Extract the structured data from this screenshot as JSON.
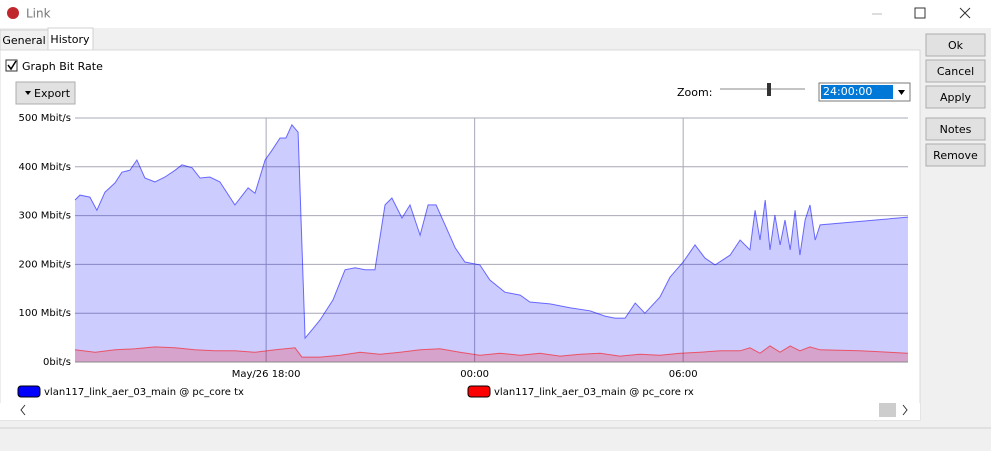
{
  "window": {
    "title": "Link"
  },
  "tabs": [
    "General",
    "History"
  ],
  "graph_bit_rate": {
    "label": "Graph Bit Rate",
    "checked": true
  },
  "export_button": "Export",
  "zoom": {
    "label": "Zoom:",
    "value": "24:00:00"
  },
  "buttons": [
    "Ok",
    "Cancel",
    "Apply",
    "Notes",
    "Remove"
  ],
  "chart_data": {
    "type": "area",
    "xlim": [
      12.5,
      36.47
    ],
    "xticks": [
      {
        "value": 18,
        "label": "May/26 18:00"
      },
      {
        "value": 24,
        "label": "00:00"
      },
      {
        "value": 30,
        "label": "06:00"
      }
    ],
    "ylim": [
      0,
      500
    ],
    "yticks": [
      {
        "value": 0,
        "label": "0bit/s"
      },
      {
        "value": 100,
        "label": "100 Mbit/s"
      },
      {
        "value": 200,
        "label": "200 Mbit/s"
      },
      {
        "value": 300,
        "label": "300 Mbit/s"
      },
      {
        "value": 400,
        "label": "400 Mbit/s"
      },
      {
        "value": 500,
        "label": "500 Mbit/s"
      }
    ],
    "grid": true,
    "series": [
      {
        "name": "vlan117_link_aer_03_main @ pc_core tx",
        "color": "#0000ff",
        "x": [
          12.5,
          12.64,
          12.93,
          13.13,
          13.36,
          13.65,
          13.85,
          14.08,
          14.28,
          14.51,
          14.8,
          15.09,
          15.38,
          15.58,
          15.87,
          16.1,
          16.38,
          16.67,
          17.1,
          17.48,
          17.68,
          17.97,
          18.17,
          18.4,
          18.57,
          18.74,
          18.92,
          19.12,
          19.32,
          19.55,
          19.92,
          20.27,
          20.56,
          20.85,
          21.13,
          21.42,
          21.62,
          21.91,
          22.14,
          22.43,
          22.66,
          22.89,
          23.15,
          23.44,
          23.72,
          24.15,
          24.44,
          24.87,
          25.31,
          25.59,
          26.17,
          26.74,
          27.32,
          27.75,
          28.04,
          28.33,
          28.62,
          28.9,
          29.33,
          29.62,
          30.0,
          30.34,
          30.63,
          30.92,
          31.35,
          31.64,
          31.92,
          32.07,
          32.21,
          32.36,
          32.5,
          32.64,
          32.79,
          32.93,
          33.08,
          33.22,
          33.36,
          33.51,
          33.65,
          33.8,
          33.94,
          36.47
        ],
        "values": [
          332,
          342,
          338,
          311,
          348,
          367,
          389,
          393,
          414,
          377,
          369,
          379,
          393,
          404,
          398,
          377,
          379,
          369,
          322,
          357,
          346,
          414,
          434,
          459,
          459,
          486,
          471,
          49,
          66,
          86,
          127,
          189,
          193,
          189,
          189,
          322,
          336,
          295,
          322,
          260,
          322,
          322,
          281,
          234,
          205,
          199,
          168,
          143,
          137,
          123,
          119,
          111,
          105,
          94,
          90,
          90,
          121,
          100,
          133,
          174,
          205,
          240,
          213,
          199,
          219,
          250,
          230,
          311,
          250,
          332,
          230,
          301,
          240,
          291,
          230,
          311,
          219,
          291,
          322,
          250,
          281,
          297
        ]
      },
      {
        "name": "vlan117_link_aer_03_main @ pc_core rx",
        "color": "#ff0000",
        "x": [
          12.5,
          13.08,
          13.65,
          14.23,
          14.8,
          15.38,
          15.95,
          16.53,
          17.1,
          17.68,
          18.26,
          18.83,
          19.03,
          19.55,
          20.13,
          20.7,
          21.28,
          21.85,
          22.43,
          23.0,
          23.58,
          24.15,
          24.73,
          25.31,
          25.88,
          26.46,
          27.03,
          27.61,
          28.18,
          28.76,
          29.33,
          29.91,
          30.48,
          31.06,
          31.64,
          31.92,
          32.21,
          32.5,
          32.79,
          33.08,
          33.36,
          33.65,
          33.94,
          35.09,
          36.47
        ],
        "values": [
          25,
          20,
          25,
          27,
          31,
          29,
          25,
          23,
          23,
          20,
          25,
          29,
          10,
          10,
          14,
          20,
          16,
          20,
          25,
          27,
          20,
          14,
          18,
          14,
          18,
          12,
          16,
          18,
          12,
          16,
          14,
          18,
          20,
          23,
          23,
          29,
          18,
          33,
          20,
          33,
          23,
          31,
          25,
          23,
          18
        ]
      }
    ]
  }
}
